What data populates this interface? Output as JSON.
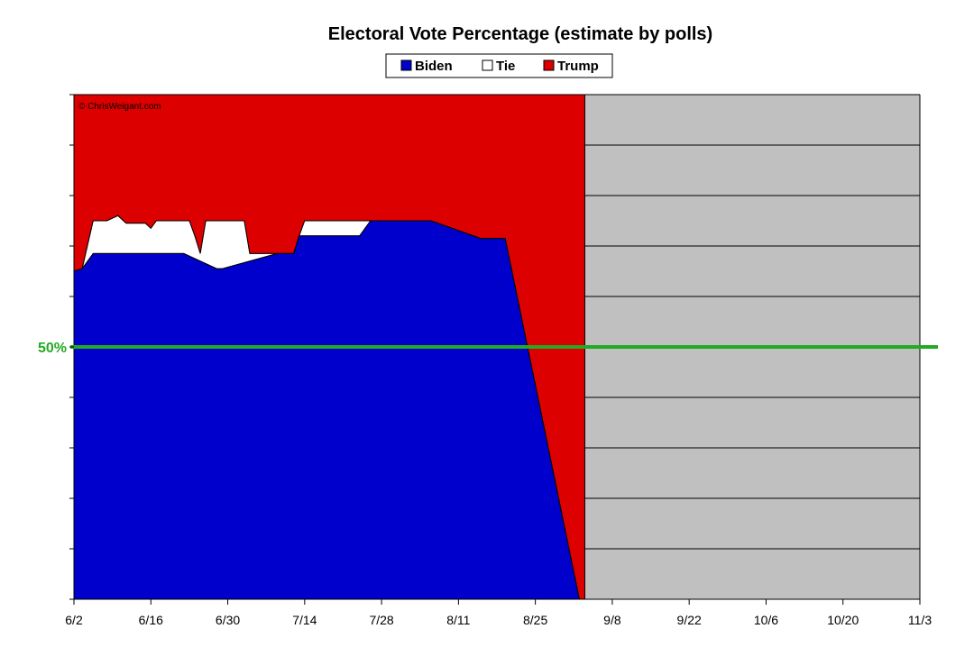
{
  "chart_data": {
    "type": "area",
    "title": "Electoral Vote Percentage (estimate by polls)",
    "watermark": "© ChrisWeigant.com",
    "legend": {
      "placement": "top-center",
      "entries": [
        {
          "label": "Biden",
          "color": "#0000cc"
        },
        {
          "label": "Tie",
          "color": "#ffffff"
        },
        {
          "label": "Trump",
          "color": "#dd0000"
        }
      ]
    },
    "x_ticks": [
      "6/2",
      "6/16",
      "6/30",
      "7/14",
      "7/28",
      "8/11",
      "8/25",
      "9/8",
      "9/22",
      "10/6",
      "10/20",
      "11/3"
    ],
    "x_range_days": [
      0,
      154
    ],
    "ylim": [
      0,
      100
    ],
    "grid": {
      "horizontal": true,
      "step": 10
    },
    "plot_background": "#c0c0c0",
    "reference_line": {
      "label": "50%",
      "value": 50,
      "color": "#22aa22"
    },
    "series": [
      {
        "name": "Biden",
        "color": "#0000cc",
        "x": [
          0,
          1.5,
          3.5,
          20,
          26,
          27,
          37,
          40,
          41,
          52,
          54,
          60,
          64,
          65,
          74,
          78.5,
          92,
          93
        ],
        "y": [
          65,
          65.5,
          68.5,
          68.5,
          65.5,
          65.5,
          68.5,
          68.5,
          72,
          72,
          75,
          75,
          75,
          75,
          71.5,
          71.5,
          0,
          0
        ]
      },
      {
        "name": "Tie",
        "color": "#ffffff",
        "x": [
          0,
          1.5,
          3.5,
          6,
          7,
          8,
          9.5,
          13,
          14,
          15,
          21,
          22,
          23,
          24,
          31,
          32,
          33,
          35,
          40,
          41,
          42,
          44,
          50,
          51,
          52,
          53,
          55,
          60,
          64,
          65,
          74,
          78.5,
          92,
          93
        ],
        "y": [
          65,
          65.5,
          75,
          75,
          75.5,
          76,
          74.5,
          74.5,
          73.5,
          75,
          75,
          72,
          68.5,
          75,
          75,
          68.5,
          68.5,
          68.5,
          68.5,
          72,
          75,
          75,
          75,
          75,
          75,
          75,
          75,
          75,
          75,
          75,
          71.5,
          71.5,
          0,
          0
        ]
      }
    ]
  }
}
